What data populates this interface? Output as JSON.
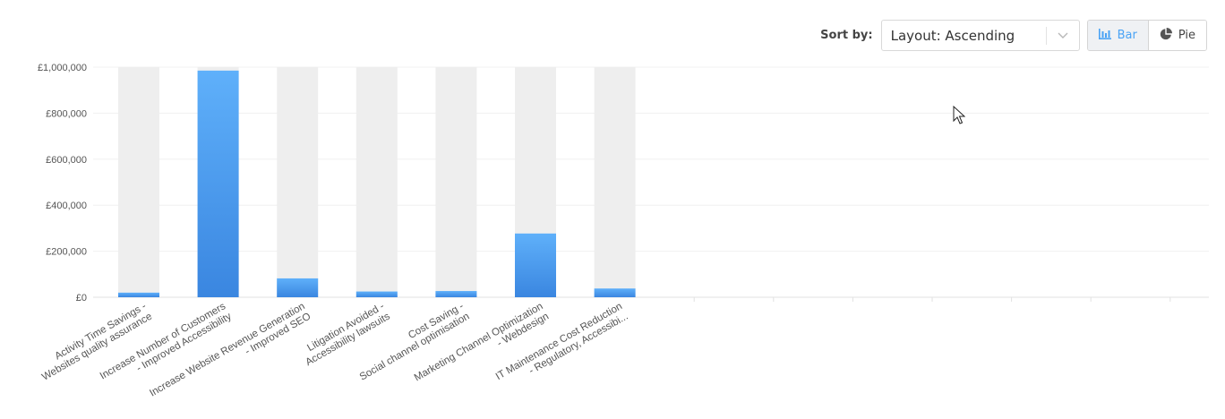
{
  "toolbar": {
    "sort_label": "Sort by:",
    "sort_value": "Layout: Ascending",
    "view_options": [
      {
        "label": "Bar",
        "icon": "bar-chart-icon",
        "active": true
      },
      {
        "label": "Pie",
        "icon": "pie-chart-icon",
        "active": false
      }
    ]
  },
  "colors": {
    "bar_top": "#5fb0fa",
    "bar_bottom": "#3a86e0",
    "track": "#eeeeee",
    "gridline": "#f0f0f0",
    "axis_text": "#555555",
    "active_toggle": "#4aa3f5"
  },
  "chart_data": {
    "type": "bar",
    "categories": [
      [
        "Activity Time Savings -",
        "Websites quality assurance"
      ],
      [
        "Increase Number of Customers",
        "- Improved Accessibility"
      ],
      [
        "Increase Website Revenue Generation",
        "- Improved SEO"
      ],
      [
        "Litigation Avoided -",
        "Accessibility lawsuits"
      ],
      [
        "Cost Saving -",
        "Social channel optimisation"
      ],
      [
        "Marketing Channel Optimization",
        "- Webdesign"
      ],
      [
        "IT Maintenance Cost Reduction",
        "- Regulatory, Accessibi..."
      ]
    ],
    "values": [
      20000,
      985000,
      82000,
      25000,
      27000,
      277000,
      38000
    ],
    "ylim": [
      0,
      1000000
    ],
    "yticks": [
      0,
      200000,
      400000,
      600000,
      800000,
      1000000
    ],
    "ytick_labels": [
      "£0",
      "£200,000",
      "£400,000",
      "£600,000",
      "£800,000",
      "£1,000,000"
    ],
    "grid": true
  }
}
